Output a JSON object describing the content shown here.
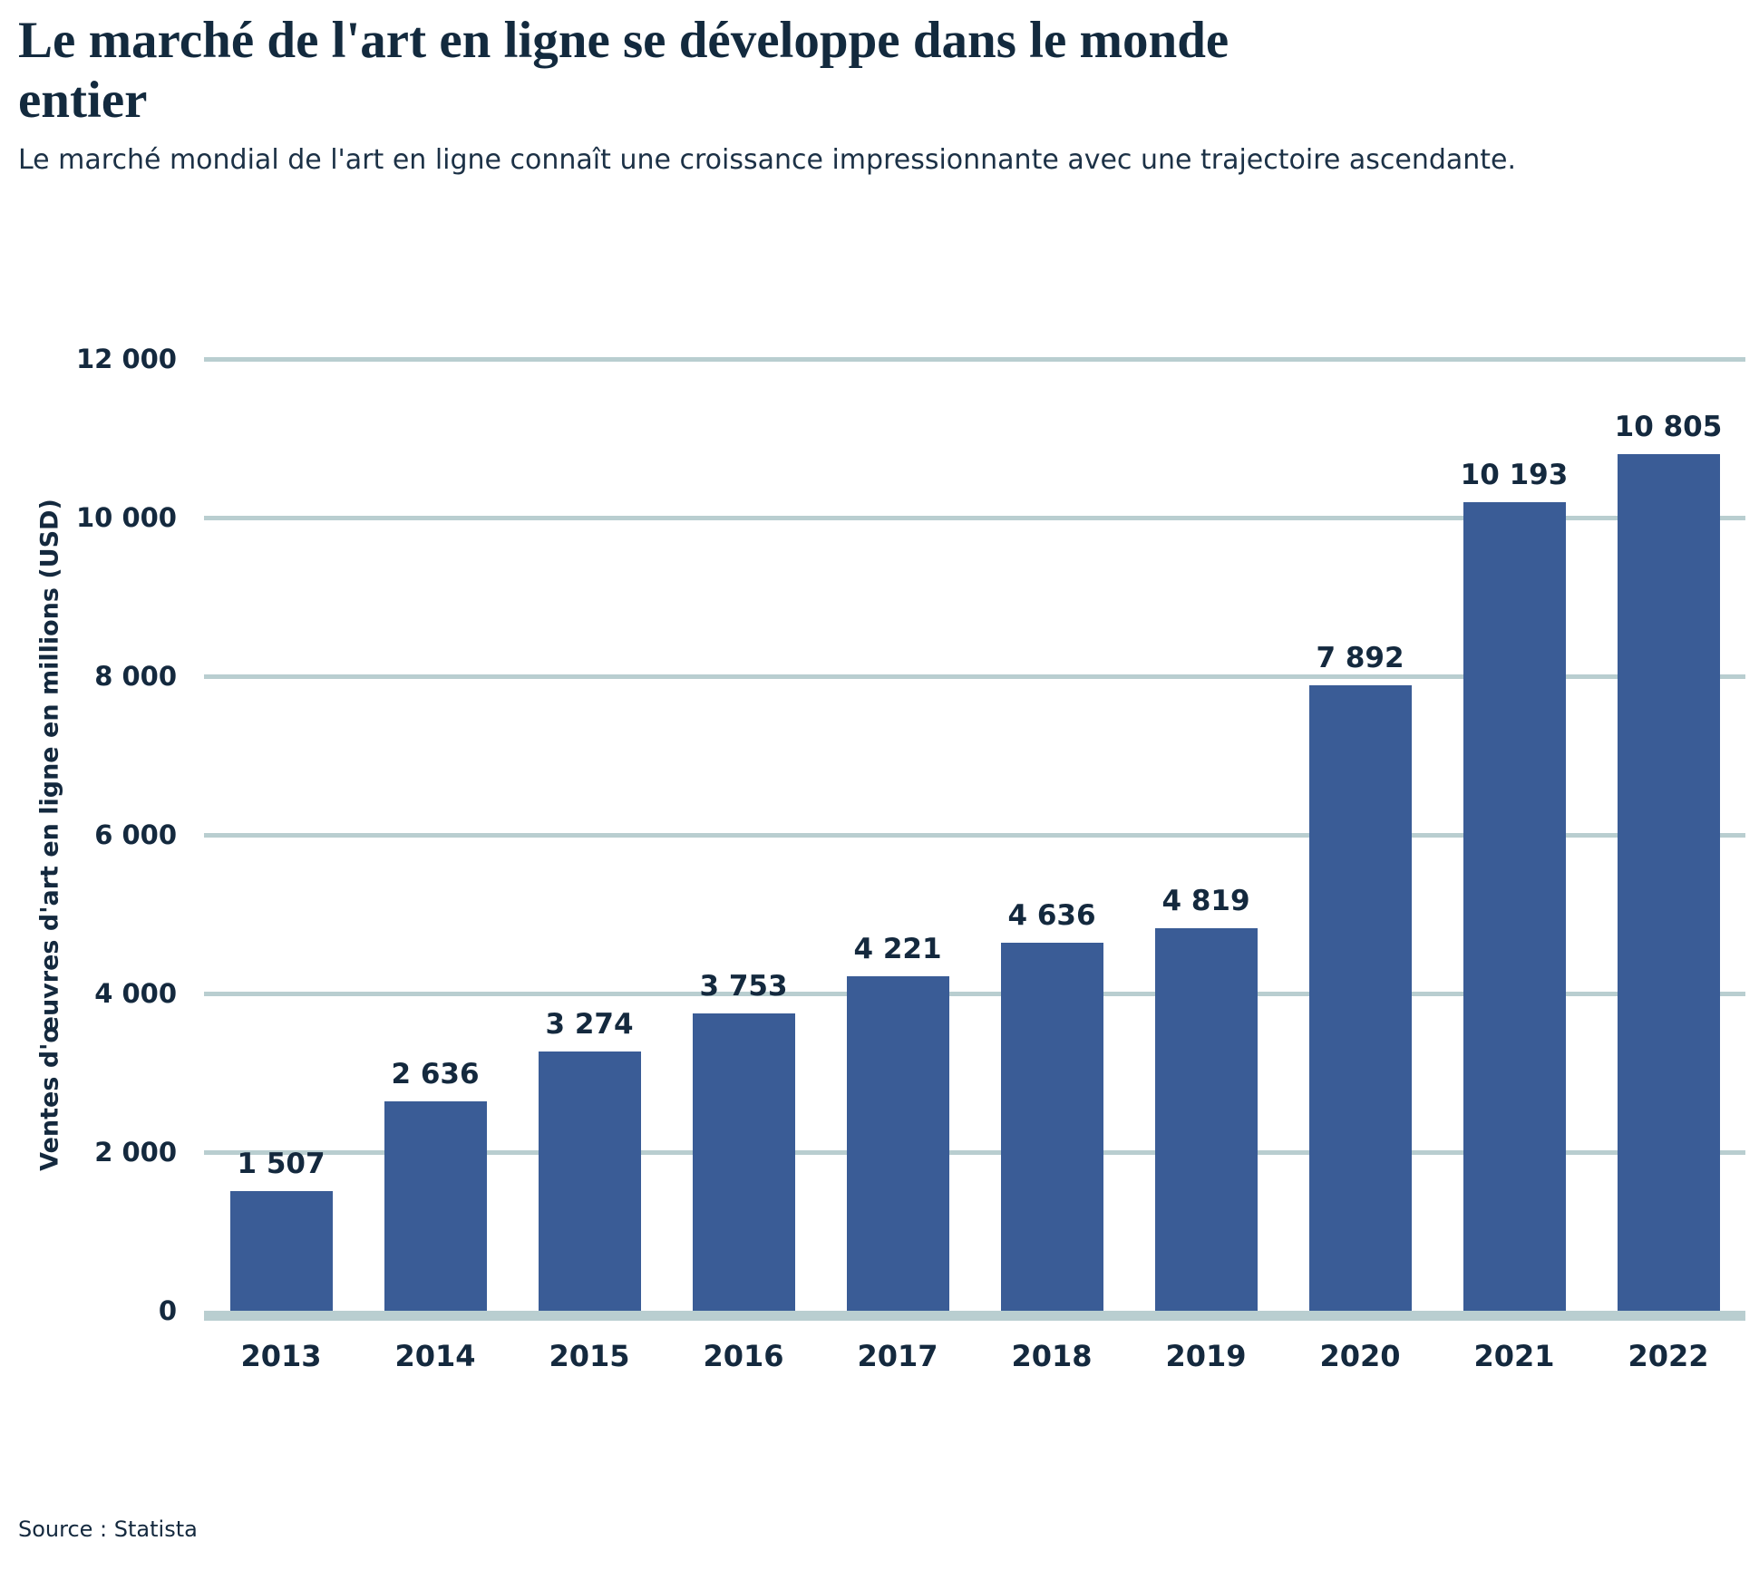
{
  "header": {
    "title_line1": "Le marché de l'art en ligne se développe dans le monde",
    "title_line2": "entier",
    "subtitle": "Le marché mondial de l'art en ligne connaît une croissance impressionnante avec une trajectoire ascendante."
  },
  "footer": {
    "source": "Source : Statista"
  },
  "colors": {
    "bar": "#3a5c96",
    "gridline": "#b9ced0",
    "text": "#14293e"
  },
  "chart_data": {
    "type": "bar",
    "title": "Le marché de l'art en ligne se développe dans le monde entier",
    "subtitle": "Le marché mondial de l'art en ligne connaît une croissance impressionnante avec une trajectoire ascendante.",
    "xlabel": "",
    "ylabel": "Ventes d'œuvres d'art en ligne en millions (USD)",
    "categories": [
      "2013",
      "2014",
      "2015",
      "2016",
      "2017",
      "2018",
      "2019",
      "2020",
      "2021",
      "2022"
    ],
    "values": [
      1507,
      2636,
      3274,
      3753,
      4221,
      4636,
      4819,
      7892,
      10193,
      10805
    ],
    "value_labels": [
      "1 507",
      "2 636",
      "3 274",
      "3 753",
      "4 221",
      "4 636",
      "4 819",
      "7 892",
      "10 193",
      "10 805"
    ],
    "ylim": [
      0,
      12000
    ],
    "yticks": [
      {
        "value": 0,
        "label": "0"
      },
      {
        "value": 2000,
        "label": "2 000"
      },
      {
        "value": 4000,
        "label": "4 000"
      },
      {
        "value": 6000,
        "label": "6 000"
      },
      {
        "value": 8000,
        "label": "8 000"
      },
      {
        "value": 10000,
        "label": "10 000"
      },
      {
        "value": 12000,
        "label": "12 000"
      }
    ],
    "grid": true,
    "legend": false,
    "source": "Source : Statista"
  }
}
